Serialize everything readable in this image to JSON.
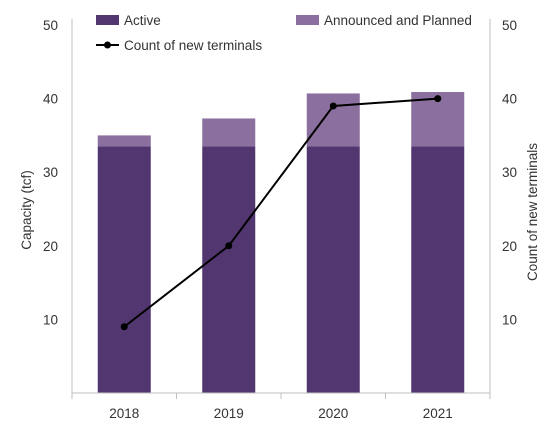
{
  "chart_data": {
    "type": "bar",
    "stacked": true,
    "categories": [
      "2018",
      "2019",
      "2020",
      "2021"
    ],
    "series": [
      {
        "name": "Active",
        "type": "bar",
        "axis": "left",
        "color": "#523670",
        "values": [
          33.5,
          33.5,
          33.5,
          33.5
        ]
      },
      {
        "name": "Announced and Planned",
        "type": "bar",
        "axis": "left",
        "color": "#8b6f9e",
        "values": [
          1.5,
          3.8,
          7.2,
          7.4
        ]
      },
      {
        "name": "Count of new terminals",
        "type": "line",
        "axis": "right",
        "color": "#000000",
        "values": [
          9,
          20,
          39,
          40
        ]
      }
    ],
    "ylabel": "Capacity (tcf)",
    "y2label": "Count of new terminals",
    "ylim": [
      0,
      50
    ],
    "y2lim": [
      0,
      50
    ],
    "yticks": [
      10,
      20,
      30,
      40,
      50
    ],
    "y2ticks": [
      10,
      20,
      30,
      40,
      50
    ],
    "grid": false,
    "legend": "top"
  }
}
